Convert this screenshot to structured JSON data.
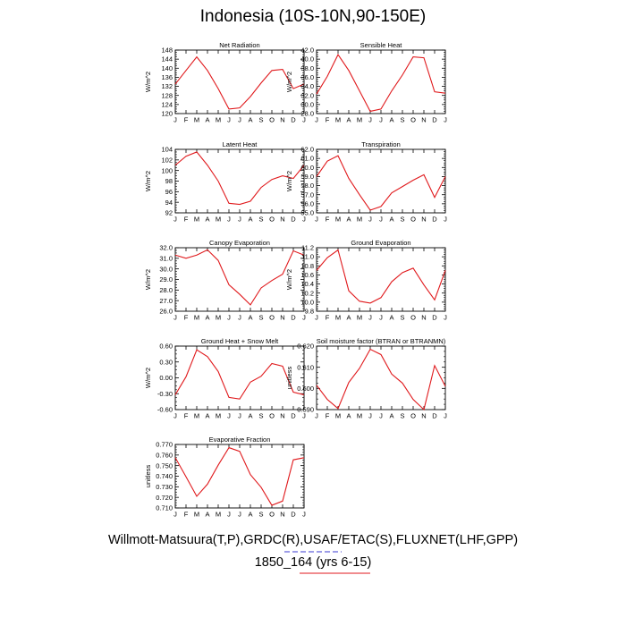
{
  "title": "Indonesia (10S-10N,90-150E)",
  "footer_line1": "Willmott-Matsuura(T,P),GRDC(R),USAF/ETAC(S),FLUXNET(LHF,GPP)",
  "footer_line2": "1850_164 (yrs 6-15)",
  "line_color": "#e0191c",
  "chart_data": [
    {
      "type": "line",
      "title": "Net Radiation",
      "ylabel": "W/m^2",
      "months": [
        "J",
        "F",
        "M",
        "A",
        "M",
        "J",
        "J",
        "A",
        "S",
        "O",
        "N",
        "D",
        "J"
      ],
      "ylim": [
        120,
        148
      ],
      "yticks": [
        120,
        124,
        128,
        132,
        136,
        140,
        144,
        148
      ],
      "ytick_labels": [
        "120",
        "124",
        "128",
        "132",
        "136",
        "140",
        "144",
        "148"
      ],
      "values": [
        133,
        139,
        145,
        139,
        131,
        122,
        122.5,
        127.5,
        133.5,
        139,
        139.5,
        131,
        133
      ]
    },
    {
      "type": "line",
      "title": "Sensible Heat",
      "ylabel": "W/m^2",
      "months": [
        "J",
        "F",
        "M",
        "A",
        "M",
        "J",
        "J",
        "A",
        "S",
        "O",
        "N",
        "D",
        "J"
      ],
      "ylim": [
        28,
        42
      ],
      "yticks": [
        28,
        30,
        32,
        34,
        36,
        38,
        40,
        42
      ],
      "ytick_labels": [
        "28.0",
        "30.0",
        "32.0",
        "34.0",
        "36.0",
        "38.0",
        "40.0",
        "42.0"
      ],
      "values": [
        32.3,
        36.2,
        41.0,
        37.5,
        33.0,
        28.5,
        29.0,
        33.0,
        36.5,
        40.5,
        40.3,
        32.8,
        32.5
      ]
    },
    {
      "type": "line",
      "title": "Latent Heat",
      "ylabel": "W/m^2",
      "months": [
        "J",
        "F",
        "M",
        "A",
        "M",
        "J",
        "J",
        "A",
        "S",
        "O",
        "N",
        "D",
        "J"
      ],
      "ylim": [
        92,
        104
      ],
      "yticks": [
        92,
        94,
        96,
        98,
        100,
        102,
        104
      ],
      "ytick_labels": [
        "92",
        "94",
        "96",
        "98",
        "100",
        "102",
        "104"
      ],
      "values": [
        101.0,
        102.7,
        103.5,
        101.0,
        98.0,
        93.8,
        93.6,
        94.2,
        96.8,
        98.3,
        99.0,
        98.5,
        101.0
      ]
    },
    {
      "type": "line",
      "title": "Transpiration",
      "ylabel": "W/m^2",
      "months": [
        "J",
        "F",
        "M",
        "A",
        "M",
        "J",
        "J",
        "A",
        "S",
        "O",
        "N",
        "D",
        "J"
      ],
      "ylim": [
        55,
        62
      ],
      "yticks": [
        55,
        56,
        57,
        58,
        59,
        60,
        61,
        62
      ],
      "ytick_labels": [
        "55.0",
        "56.0",
        "57.0",
        "58.0",
        "59.0",
        "60.0",
        "61.0",
        "62.0"
      ],
      "values": [
        59.0,
        60.7,
        61.3,
        58.8,
        57.0,
        55.3,
        55.7,
        57.2,
        57.9,
        58.6,
        59.2,
        56.7,
        59.0
      ]
    },
    {
      "type": "line",
      "title": "Canopy Evaporation",
      "ylabel": "W/m^2",
      "months": [
        "J",
        "F",
        "M",
        "A",
        "M",
        "J",
        "J",
        "A",
        "S",
        "O",
        "N",
        "D",
        "J"
      ],
      "ylim": [
        26,
        32
      ],
      "yticks": [
        26,
        27,
        28,
        29,
        30,
        31,
        32
      ],
      "ytick_labels": [
        "26.0",
        "27.0",
        "28.0",
        "29.0",
        "30.0",
        "31.0",
        "32.0"
      ],
      "values": [
        31.3,
        31.0,
        31.3,
        31.8,
        30.8,
        28.5,
        27.6,
        26.6,
        28.2,
        28.9,
        29.5,
        31.7,
        31.3
      ]
    },
    {
      "type": "line",
      "title": "Ground Evaporation",
      "ylabel": "W/m^2",
      "months": [
        "J",
        "F",
        "M",
        "A",
        "M",
        "J",
        "J",
        "A",
        "S",
        "O",
        "N",
        "D",
        "J"
      ],
      "ylim": [
        9.8,
        11.2
      ],
      "yticks": [
        9.8,
        10.0,
        10.2,
        10.4,
        10.6,
        10.8,
        11.0,
        11.2
      ],
      "ytick_labels": [
        "9.8",
        "10.0",
        "10.2",
        "10.4",
        "10.6",
        "10.8",
        "11.0",
        "11.2"
      ],
      "values": [
        10.7,
        10.98,
        11.15,
        10.25,
        10.02,
        9.98,
        10.1,
        10.45,
        10.65,
        10.75,
        10.38,
        10.05,
        10.7
      ]
    },
    {
      "type": "line",
      "title": "Ground Heat + Snow Melt",
      "ylabel": "W/m^2",
      "months": [
        "J",
        "F",
        "M",
        "A",
        "M",
        "J",
        "J",
        "A",
        "S",
        "O",
        "N",
        "D",
        "J"
      ],
      "ylim": [
        -0.6,
        0.6
      ],
      "yticks": [
        -0.6,
        -0.3,
        0.0,
        0.3,
        0.6
      ],
      "ytick_labels": [
        "-0.60",
        "-0.30",
        "0.00",
        "0.30",
        "0.60"
      ],
      "values": [
        -0.32,
        0.02,
        0.53,
        0.4,
        0.12,
        -0.37,
        -0.4,
        -0.08,
        0.03,
        0.27,
        0.22,
        -0.27,
        -0.32
      ]
    },
    {
      "type": "line",
      "title": "Soil moisture factor (BTRAN or BTRANMN)",
      "ylabel": "unitless",
      "months": [
        "J",
        "F",
        "M",
        "A",
        "M",
        "J",
        "J",
        "A",
        "S",
        "O",
        "N",
        "D",
        "J"
      ],
      "ylim": [
        0.59,
        0.62
      ],
      "yticks": [
        0.59,
        0.6,
        0.61,
        0.62
      ],
      "ytick_labels": [
        "0.590",
        "0.600",
        "0.610",
        "0.620"
      ],
      "values": [
        0.6015,
        0.5948,
        0.5905,
        0.6028,
        0.6095,
        0.6185,
        0.616,
        0.6068,
        0.6025,
        0.5948,
        0.59,
        0.6108,
        0.601
      ]
    },
    {
      "type": "line",
      "title": "Evaporative Fraction",
      "ylabel": "unitless",
      "months": [
        "J",
        "F",
        "M",
        "A",
        "M",
        "J",
        "J",
        "A",
        "S",
        "O",
        "N",
        "D",
        "J"
      ],
      "ylim": [
        0.71,
        0.77
      ],
      "yticks": [
        0.71,
        0.72,
        0.73,
        0.74,
        0.75,
        0.76,
        0.77
      ],
      "ytick_labels": [
        "0.710",
        "0.720",
        "0.730",
        "0.740",
        "0.750",
        "0.760",
        "0.770"
      ],
      "values": [
        0.7575,
        0.7395,
        0.721,
        0.7325,
        0.7505,
        0.767,
        0.7635,
        0.7415,
        0.7295,
        0.7125,
        0.7165,
        0.7555,
        0.7575
      ]
    }
  ]
}
